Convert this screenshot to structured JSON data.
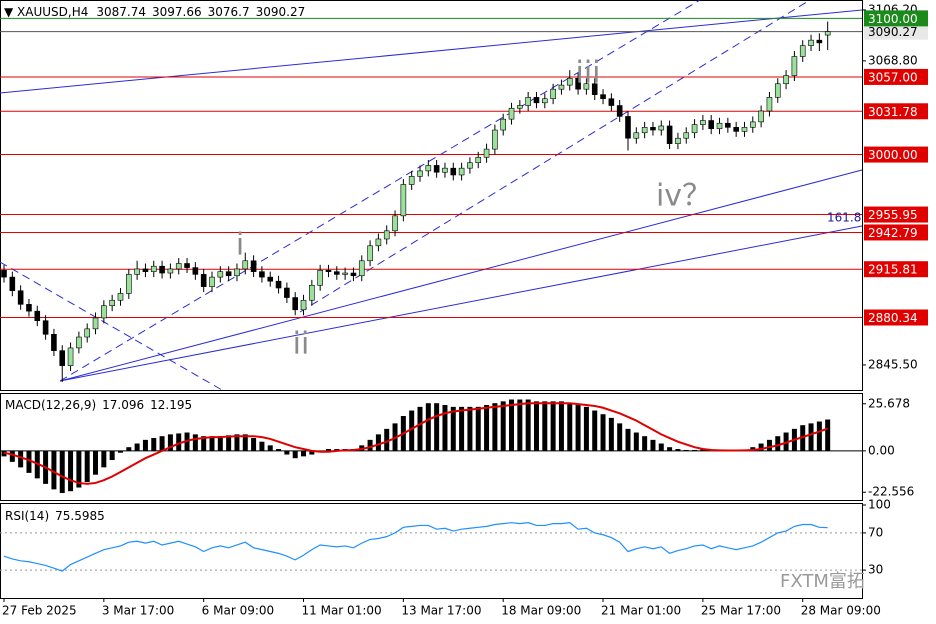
{
  "chart_data": {
    "type": "candlestick",
    "symbol": "XAUUSD,H4",
    "categories": [
      "27 Feb 2025",
      null,
      null,
      null,
      null,
      null,
      null,
      null,
      null,
      null,
      null,
      null,
      "3 Mar 17:00",
      null,
      null,
      null,
      null,
      null,
      null,
      null,
      null,
      null,
      null,
      null,
      "6 Mar 09:00",
      null,
      null,
      null,
      null,
      null,
      null,
      null,
      null,
      null,
      null,
      null,
      "11 Mar 01:00",
      null,
      null,
      null,
      null,
      null,
      null,
      null,
      null,
      null,
      null,
      null,
      "13 Mar 17:00",
      null,
      null,
      null,
      null,
      null,
      null,
      null,
      null,
      null,
      null,
      null,
      "18 Mar 09:00",
      null,
      null,
      null,
      null,
      null,
      null,
      null,
      null,
      null,
      null,
      null,
      "21 Mar 01:00",
      null,
      null,
      null,
      null,
      null,
      null,
      null,
      null,
      null,
      null,
      null,
      "25 Mar 17:00",
      null,
      null,
      null,
      null,
      null,
      null,
      null,
      null,
      null,
      null,
      null,
      "28 Mar 09:00",
      null,
      null,
      null
    ],
    "open": [
      2915,
      2910,
      2900,
      2890,
      2885,
      2878,
      2868,
      2856,
      2845,
      2858,
      2866,
      2872,
      2880,
      2889,
      2893,
      2898,
      2912,
      2916,
      2914,
      2918,
      2913,
      2916,
      2920,
      2917,
      2912,
      2903,
      2910,
      2914,
      2911,
      2916,
      2922,
      2914,
      2910,
      2907,
      2902,
      2895,
      2886,
      2893,
      2904,
      2915,
      2914,
      2912,
      2913,
      2911,
      2922,
      2933,
      2938,
      2944,
      2955,
      2978,
      2984,
      2988,
      2992,
      2987,
      2990,
      2985,
      2990,
      2994,
      2998,
      3004,
      3018,
      3026,
      3034,
      3036,
      3042,
      3038,
      3041,
      3048,
      3051,
      3056,
      3048,
      3052,
      3044,
      3041,
      3036,
      3028,
      3012,
      3016,
      3020,
      3018,
      3021,
      3008,
      3012,
      3016,
      3022,
      3025,
      3019,
      3023,
      3020,
      3017,
      3020,
      3024,
      3032,
      3042,
      3052,
      3058,
      3072,
      3080,
      3084,
      3087.74
    ],
    "high": [
      2919,
      2914,
      2904,
      2894,
      2889,
      2882,
      2872,
      2860,
      2862,
      2870,
      2876,
      2884,
      2893,
      2897,
      2902,
      2916,
      2922,
      2920,
      2922,
      2922,
      2920,
      2924,
      2924,
      2921,
      2916,
      2914,
      2918,
      2918,
      2920,
      2928,
      2926,
      2918,
      2914,
      2911,
      2906,
      2899,
      2897,
      2908,
      2919,
      2919,
      2918,
      2917,
      2917,
      2926,
      2937,
      2942,
      2948,
      2959,
      2982,
      2988,
      2992,
      2996,
      2996,
      2994,
      2994,
      2994,
      2998,
      3002,
      3008,
      3022,
      3030,
      3038,
      3040,
      3046,
      3046,
      3045,
      3052,
      3055,
      3062,
      3060,
      3056,
      3056,
      3048,
      3045,
      3040,
      3032,
      3020,
      3024,
      3024,
      3025,
      3025,
      3016,
      3020,
      3026,
      3029,
      3029,
      3027,
      3027,
      3024,
      3024,
      3028,
      3036,
      3046,
      3056,
      3062,
      3076,
      3084,
      3088,
      3089,
      3097.66
    ],
    "low": [
      2906,
      2896,
      2886,
      2881,
      2874,
      2864,
      2852,
      2833,
      2841,
      2854,
      2862,
      2868,
      2876,
      2885,
      2889,
      2894,
      2908,
      2910,
      2910,
      2909,
      2909,
      2912,
      2913,
      2908,
      2899,
      2899,
      2906,
      2907,
      2907,
      2912,
      2910,
      2906,
      2903,
      2898,
      2891,
      2882,
      2882,
      2889,
      2900,
      2910,
      2908,
      2908,
      2907,
      2907,
      2918,
      2929,
      2934,
      2940,
      2951,
      2974,
      2980,
      2984,
      2983,
      2983,
      2981,
      2981,
      2986,
      2990,
      2994,
      3000,
      3014,
      3022,
      3030,
      3032,
      3034,
      3034,
      3037,
      3044,
      3047,
      3044,
      3044,
      3040,
      3037,
      3032,
      3024,
      3003,
      3008,
      3012,
      3014,
      3014,
      3004,
      3004,
      3008,
      3012,
      3018,
      3015,
      3015,
      3016,
      3013,
      3013,
      3016,
      3020,
      3028,
      3038,
      3048,
      3054,
      3068,
      3076,
      3076,
      3076.7
    ],
    "close": [
      2910,
      2900,
      2890,
      2885,
      2878,
      2868,
      2856,
      2845,
      2858,
      2866,
      2872,
      2880,
      2889,
      2893,
      2898,
      2912,
      2916,
      2914,
      2918,
      2913,
      2916,
      2920,
      2917,
      2912,
      2903,
      2910,
      2914,
      2911,
      2916,
      2922,
      2914,
      2910,
      2907,
      2902,
      2895,
      2886,
      2893,
      2904,
      2915,
      2914,
      2912,
      2913,
      2911,
      2922,
      2933,
      2938,
      2944,
      2955,
      2978,
      2984,
      2988,
      2992,
      2987,
      2990,
      2985,
      2990,
      2994,
      2998,
      3004,
      3018,
      3026,
      3034,
      3036,
      3042,
      3038,
      3041,
      3048,
      3051,
      3056,
      3048,
      3052,
      3044,
      3041,
      3036,
      3028,
      3012,
      3016,
      3020,
      3018,
      3021,
      3008,
      3012,
      3016,
      3022,
      3025,
      3019,
      3023,
      3020,
      3017,
      3020,
      3024,
      3032,
      3042,
      3052,
      3058,
      3072,
      3080,
      3084,
      3082,
      3090.27
    ],
    "up_color": "#9be09b",
    "down_color": "#000000",
    "ylim": [
      2827.1,
      3113.5
    ],
    "yticks": [
      {
        "value": 3106.2,
        "label": "3106.20"
      },
      {
        "value": 3068.8,
        "label": "3068.80"
      },
      {
        "value": 2845.5,
        "label": "2845.50"
      }
    ],
    "levels": [
      {
        "value": 3057,
        "label": "3057.00"
      },
      {
        "value": 3031.78,
        "label": "3031.78"
      },
      {
        "value": 3000,
        "label": "3000.00"
      },
      {
        "value": 2955.95,
        "label": "2955.95"
      },
      {
        "value": 2942.79,
        "label": "2942.79"
      },
      {
        "value": 2915.81,
        "label": "2915.81"
      },
      {
        "value": 2880.34,
        "label": "2880.34"
      }
    ],
    "level_color": "#e00000",
    "target": {
      "value": 3100,
      "label": "3100.00"
    },
    "target_color": "#1a8a1a",
    "current_price": 3090.27,
    "waves": [
      "i",
      "ii",
      "iii",
      "iv？"
    ],
    "fib_label": "161.8",
    "watermark": "FXTM富拓",
    "macd": {
      "type": "bar",
      "name": "MACD(12,26,9)",
      "values": [
        -3,
        -6,
        -9,
        -12,
        -15,
        -18,
        -21,
        -23,
        -22,
        -20,
        -17,
        -13,
        -9,
        -5,
        -1,
        2,
        4,
        6,
        7,
        8,
        9,
        9.5,
        10,
        9,
        8,
        8,
        8,
        8.5,
        9,
        9,
        7,
        5,
        3,
        1,
        -2,
        -4,
        -3,
        -2,
        0,
        1,
        1,
        1,
        1,
        3,
        6,
        9,
        12,
        15,
        19,
        22,
        24,
        26,
        26,
        25,
        24,
        24,
        24,
        24,
        25,
        26,
        27,
        28,
        28,
        28,
        27,
        27,
        27,
        27,
        26,
        25,
        24,
        22,
        20,
        18,
        15,
        12,
        10,
        8,
        6,
        4,
        2,
        1,
        0.5,
        0.5,
        1,
        0.5,
        0.5,
        0.5,
        0.3,
        0.5,
        2,
        4,
        6,
        8,
        10,
        12,
        14,
        15,
        16,
        17.096
      ],
      "signal": [
        -1,
        -2,
        -3.5,
        -5,
        -7,
        -9,
        -11.5,
        -14,
        -16,
        -17.5,
        -18,
        -17.5,
        -16,
        -14,
        -11.5,
        -9,
        -6.5,
        -4,
        -2,
        0,
        2,
        4,
        5.5,
        6.5,
        7,
        7.5,
        7.5,
        7.8,
        8,
        8,
        8,
        7.5,
        6.5,
        5,
        3.5,
        2,
        1,
        0,
        -0.5,
        -0.5,
        0,
        0.3,
        0.5,
        1,
        2,
        3.5,
        5,
        7,
        9.5,
        12,
        14.5,
        17,
        19,
        20.5,
        21.5,
        22,
        22.5,
        23,
        23.5,
        24,
        24.5,
        25,
        25.5,
        26,
        26,
        26,
        26,
        26,
        26,
        25.5,
        25,
        24.5,
        23.5,
        22,
        20.5,
        18.5,
        16.5,
        14,
        11.5,
        9,
        7,
        5,
        3.5,
        2,
        1,
        0.5,
        0.3,
        0.2,
        0.2,
        0.3,
        0.5,
        1,
        2,
        3,
        4.5,
        6,
        7.5,
        9,
        10.5,
        12.195
      ],
      "color": "#000000",
      "signal_color": "#e00000",
      "ylim": [
        -26.8,
        31.56
      ],
      "yticks": [
        25.678,
        {
          "value": 0,
          "label": "0.00"
        },
        -22.556
      ]
    },
    "rsi": {
      "type": "line",
      "name": "RSI(14)",
      "values": [
        45,
        42,
        40,
        39,
        37,
        35,
        32,
        29,
        36,
        40,
        44,
        48,
        52,
        54,
        56,
        60,
        61,
        59,
        61,
        57,
        59,
        61,
        58,
        55,
        50,
        54,
        56,
        54,
        57,
        60,
        54,
        52,
        50,
        48,
        45,
        41,
        46,
        52,
        57,
        56,
        55,
        56,
        54,
        59,
        63,
        64,
        66,
        70,
        76,
        77,
        78,
        78,
        74,
        75,
        72,
        74,
        75,
        76,
        77,
        79,
        80,
        81,
        80,
        81,
        78,
        78,
        80,
        80,
        81,
        74,
        75,
        70,
        68,
        65,
        60,
        50,
        53,
        55,
        53,
        55,
        48,
        51,
        53,
        56,
        57,
        53,
        56,
        54,
        52,
        54,
        56,
        60,
        65,
        70,
        72,
        77,
        79,
        79,
        76,
        75.5985
      ],
      "color": "#1e90ff",
      "ylim": [
        0,
        100
      ],
      "yticks": [
        100,
        70,
        30
      ]
    }
  }
}
